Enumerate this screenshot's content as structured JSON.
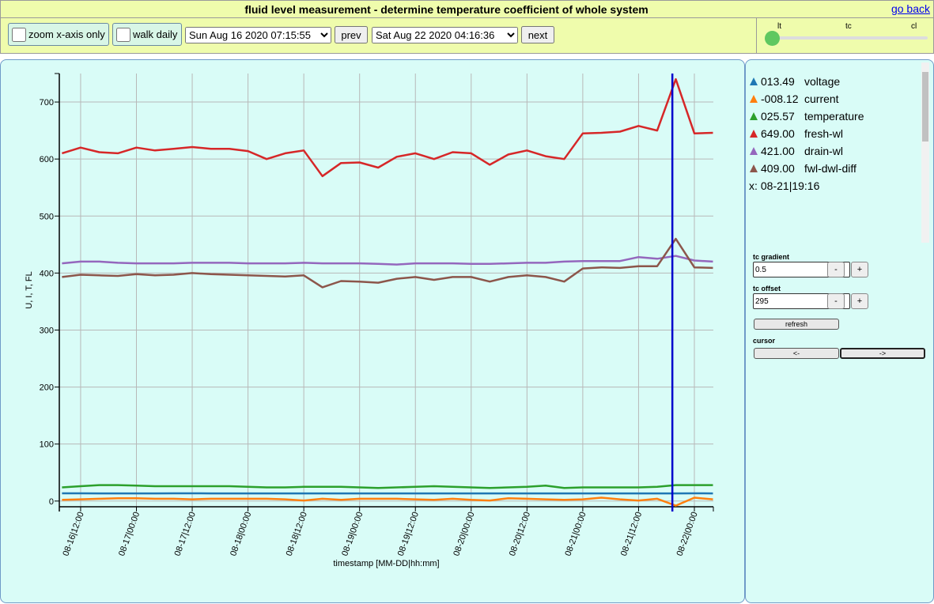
{
  "header": {
    "title": "fluid level measurement - determine temperature coefficient of whole system",
    "back_link": "go back"
  },
  "controls": {
    "zoom": "zoom x-axis only",
    "walk": "walk daily",
    "start": "Sun Aug 16 2020 07:15:55",
    "prev": "prev",
    "end": "Sat Aug 22 2020 04:16:36",
    "next": "next",
    "slider_labels": [
      "lt",
      "tc",
      "cl"
    ]
  },
  "chart_data": {
    "type": "line",
    "ylabel": "U, I, T, FL",
    "xlabel": "timestamp [MM-DD|hh:mm]",
    "x": [
      "08-16|08:00",
      "08-16|12:00",
      "08-16|16:00",
      "08-16|20:00",
      "08-17|00:00",
      "08-17|04:00",
      "08-17|08:00",
      "08-17|12:00",
      "08-17|16:00",
      "08-17|20:00",
      "08-18|00:00",
      "08-18|04:00",
      "08-18|08:00",
      "08-18|12:00",
      "08-18|16:00",
      "08-18|20:00",
      "08-19|00:00",
      "08-19|04:00",
      "08-19|08:00",
      "08-19|12:00",
      "08-19|16:00",
      "08-19|20:00",
      "08-20|00:00",
      "08-20|04:00",
      "08-20|08:00",
      "08-20|12:00",
      "08-20|16:00",
      "08-20|20:00",
      "08-21|00:00",
      "08-21|04:00",
      "08-21|08:00",
      "08-21|12:00",
      "08-21|16:00",
      "08-21|20:00",
      "08-22|00:00",
      "08-22|04:00"
    ],
    "xlim": [
      "08-16|07:25",
      "08-22|04:05"
    ],
    "xticks": [
      "08-16|12:00",
      "08-17|00:00",
      "08-17|12:00",
      "08-18|00:00",
      "08-18|12:00",
      "08-19|00:00",
      "08-19|12:00",
      "08-20|00:00",
      "08-20|12:00",
      "08-21|00:00",
      "08-21|12:00",
      "08-22|00:00"
    ],
    "ylim": [
      -10,
      750
    ],
    "yticks": [
      0,
      100,
      200,
      300,
      400,
      500,
      600,
      700
    ],
    "grid": true,
    "series": [
      {
        "name": "voltage",
        "color": "#1f77b4",
        "values": [
          13.6,
          13.6,
          13.5,
          13.5,
          13.5,
          13.5,
          13.6,
          13.6,
          13.5,
          13.5,
          13.5,
          13.4,
          13.4,
          13.5,
          13.5,
          13.5,
          13.4,
          13.4,
          13.5,
          13.5,
          13.5,
          13.5,
          13.4,
          13.4,
          13.5,
          13.5,
          13.5,
          13.4,
          13.4,
          13.5,
          13.5,
          13.5,
          13.5,
          13.5,
          13.6,
          13.5
        ]
      },
      {
        "name": "current",
        "color": "#ff7f0e",
        "values": [
          2,
          3,
          4,
          5,
          5,
          4,
          4,
          3,
          4,
          4,
          4,
          4,
          3,
          1,
          4,
          2,
          4,
          4,
          4,
          3,
          2,
          4,
          2,
          1,
          5,
          4,
          3,
          2,
          3,
          6,
          3,
          1,
          4,
          -8,
          6,
          3
        ]
      },
      {
        "name": "temperature",
        "color": "#2ca02c",
        "values": [
          24,
          26,
          28,
          28,
          27,
          26,
          26,
          26,
          26,
          26,
          25,
          24,
          24,
          25,
          25,
          25,
          24,
          23,
          24,
          25,
          26,
          25,
          24,
          23,
          24,
          25,
          27,
          23,
          24,
          24,
          24,
          24,
          25,
          28,
          28,
          28
        ]
      },
      {
        "name": "fresh-wl",
        "color": "#d62728",
        "values": [
          610,
          620,
          612,
          610,
          620,
          615,
          618,
          621,
          618,
          618,
          614,
          600,
          610,
          615,
          570,
          593,
          594,
          585,
          604,
          610,
          600,
          612,
          610,
          590,
          608,
          615,
          605,
          600,
          645,
          646,
          648,
          658,
          650,
          740,
          645,
          646
        ]
      },
      {
        "name": "drain-wl",
        "color": "#9467bd",
        "values": [
          417,
          420,
          420,
          418,
          417,
          417,
          417,
          418,
          418,
          418,
          417,
          417,
          417,
          418,
          417,
          417,
          417,
          416,
          415,
          417,
          417,
          417,
          416,
          416,
          417,
          418,
          418,
          420,
          421,
          421,
          421,
          428,
          425,
          430,
          422,
          420
        ]
      },
      {
        "name": "fwl-dwl-diff",
        "color": "#8c564b",
        "values": [
          393,
          397,
          396,
          395,
          398,
          396,
          397,
          400,
          398,
          397,
          396,
          395,
          394,
          396,
          375,
          386,
          385,
          383,
          390,
          393,
          388,
          393,
          393,
          385,
          393,
          396,
          393,
          385,
          408,
          410,
          409,
          412,
          412,
          460,
          410,
          409
        ]
      }
    ],
    "cursor_color": "#0000cc"
  },
  "legend": {
    "values": [
      "013.49",
      "-008.12",
      "025.57",
      "649.00",
      "421.00",
      "409.00"
    ],
    "x_label": "x:",
    "cursor_x": "08-21|19:16"
  },
  "side": {
    "tc_gradient": "tc gradient",
    "gradient_value": "0.5",
    "gradient_minus": "-",
    "gradient_plus": "+",
    "tc_offset": "tc offset",
    "offset_value": "295",
    "offset_minus": "-",
    "offset_plus": "+",
    "refresh": "refresh",
    "cursor": "cursor",
    "cursor_left": "<-",
    "cursor_right": "->"
  }
}
